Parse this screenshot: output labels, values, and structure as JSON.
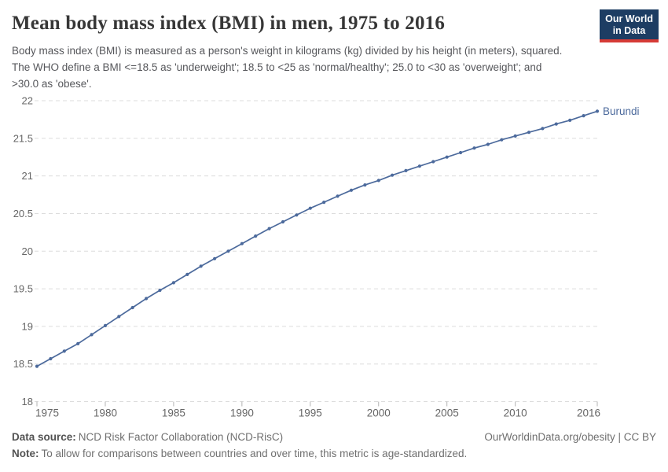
{
  "header": {
    "title": "Mean body mass index (BMI) in men, 1975 to 2016",
    "subtitle": "Body mass index (BMI) is measured as a person's weight in kilograms (kg) divided by his height (in meters), squared. The WHO define a BMI <=18.5 as 'underweight'; 18.5 to <25 as 'normal/healthy'; 25.0 to <30 as 'overweight'; and >30.0 as 'obese'.",
    "logo": {
      "line1": "Our World",
      "line2": "in Data",
      "bg_color": "#1d3d63",
      "accent_color": "#d63b36"
    }
  },
  "chart_data": {
    "type": "line",
    "title": "Mean body mass index (BMI) in men, 1975 to 2016",
    "xlabel": "",
    "ylabel": "",
    "xlim": [
      1975,
      2016
    ],
    "ylim": [
      18,
      22
    ],
    "x_ticks": [
      1975,
      1980,
      1985,
      1990,
      1995,
      2000,
      2005,
      2010,
      2016
    ],
    "y_ticks": [
      18,
      18.5,
      19,
      19.5,
      20,
      20.5,
      21,
      21.5,
      22
    ],
    "grid": "horizontal-dashed",
    "legend_position": "end-of-line-label",
    "series": [
      {
        "name": "Burundi",
        "color": "#4C6A9C",
        "x": [
          1975,
          1976,
          1977,
          1978,
          1979,
          1980,
          1981,
          1982,
          1983,
          1984,
          1985,
          1986,
          1987,
          1988,
          1989,
          1990,
          1991,
          1992,
          1993,
          1994,
          1995,
          1996,
          1997,
          1998,
          1999,
          2000,
          2001,
          2002,
          2003,
          2004,
          2005,
          2006,
          2007,
          2008,
          2009,
          2010,
          2011,
          2012,
          2013,
          2014,
          2015,
          2016
        ],
        "values": [
          18.47,
          18.57,
          18.67,
          18.77,
          18.89,
          19.01,
          19.13,
          19.25,
          19.37,
          19.48,
          19.58,
          19.69,
          19.8,
          19.9,
          20.0,
          20.1,
          20.2,
          20.3,
          20.39,
          20.48,
          20.57,
          20.65,
          20.73,
          20.81,
          20.88,
          20.94,
          21.01,
          21.07,
          21.13,
          21.19,
          21.25,
          21.31,
          21.37,
          21.42,
          21.48,
          21.53,
          21.58,
          21.63,
          21.69,
          21.74,
          21.8,
          21.86
        ]
      }
    ],
    "colors": {
      "gridline": "#dcdcdc",
      "tick": "#b3b3b3",
      "axis_label": "#666666"
    }
  },
  "footer": {
    "data_source_label": "Data source:",
    "data_source": "NCD Risk Factor Collaboration (NCD-RisC)",
    "credit": "OurWorldinData.org/obesity | CC BY",
    "note_label": "Note:",
    "note": "To allow for comparisons between countries and over time, this metric is age-standardized."
  }
}
